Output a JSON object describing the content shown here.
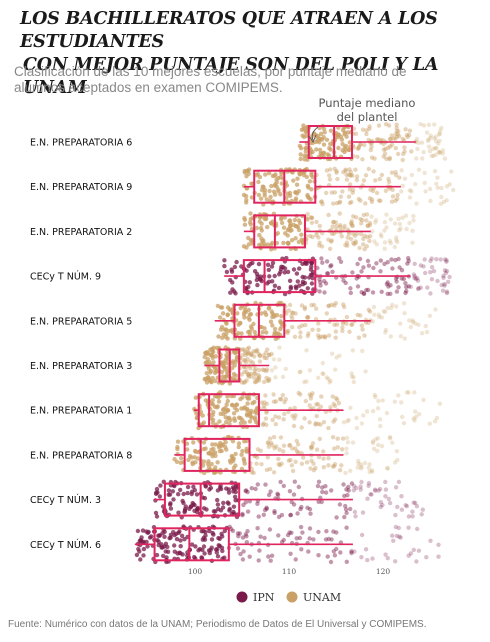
{
  "title_line1": "LOS BACHILLERATOS QUE ATRAEN A LOS ESTUDIANTES",
  "title_line2": "CON MEJOR PUNTAJE SON DEL POLI Y  LA UNAM",
  "subtitle": "Clasificación de las 10 mejores escuelas, por puntaje mediano de alumnos aceptados en examen COMIPEMS.",
  "annotation": "Puntaje mediano del plantel",
  "source": "Fuente: Numérico con datos de la UNAM; Periodismo de Datos de El Universal y COMIPEMS.",
  "colors": {
    "IPN": "#7a1a4a",
    "UNAM": "#c9a065",
    "box": "#e0245e"
  },
  "chart_data": {
    "type": "boxplot",
    "x_ticks": [
      100,
      110,
      120
    ],
    "xlim": [
      91.5,
      129
    ],
    "legend": [
      {
        "name": "IPN",
        "color": "#7a1a4a"
      },
      {
        "name": "UNAM",
        "color": "#c9a065"
      }
    ],
    "legend_position": "bottom-center",
    "schools": [
      {
        "name": "E.N. PREPARATORIA  6",
        "system": "UNAM",
        "min": 111.1,
        "q1": 112.1,
        "median": 114.8,
        "q3": 116.7,
        "whisker_high": 123.5,
        "points_max": 126.7
      },
      {
        "name": "E.N. PREPARATORIA  9",
        "system": "UNAM",
        "min": 105.2,
        "q1": 106.3,
        "median": 109.5,
        "q3": 112.8,
        "whisker_high": 121.9,
        "points_max": 127.7
      },
      {
        "name": "E.N. PREPARATORIA  2",
        "system": "UNAM",
        "min": 105.2,
        "q1": 106.3,
        "median": 108.5,
        "q3": 111.7,
        "whisker_high": 118.7,
        "points_max": 123.5
      },
      {
        "name": "CECy T NÚM. 9",
        "system": "IPN",
        "min": 103.1,
        "q1": 105.2,
        "median": 107.4,
        "q3": 112.8,
        "whisker_high": 122.9,
        "points_max": 127.2
      },
      {
        "name": "E.N. PREPARATORIA  5",
        "system": "UNAM",
        "min": 102.1,
        "q1": 104.2,
        "median": 106.8,
        "q3": 109.5,
        "whisker_high": 118.7,
        "points_max": 125.6
      },
      {
        "name": "E.N. PREPARATORIA  3",
        "system": "UNAM",
        "min": 101.0,
        "q1": 102.6,
        "median": 103.7,
        "q3": 104.7,
        "whisker_high": 107.9,
        "points_max": 118.7
      },
      {
        "name": "E.N. PREPARATORIA  1",
        "system": "UNAM",
        "min": 99.9,
        "q1": 100.4,
        "median": 101.5,
        "q3": 106.8,
        "whisker_high": 115.8,
        "points_max": 126.2
      },
      {
        "name": "E.N. PREPARATORIA  8",
        "system": "UNAM",
        "min": 97.8,
        "q1": 98.9,
        "median": 100.6,
        "q3": 105.8,
        "whisker_high": 115.8,
        "points_max": 121.9
      },
      {
        "name": "CECy T NÚM. 3",
        "system": "IPN",
        "min": 95.7,
        "q1": 96.8,
        "median": 100.6,
        "q3": 104.7,
        "whisker_high": 116.8,
        "points_max": 124.6
      },
      {
        "name": "CECy T NÚM. 6",
        "system": "IPN",
        "min": 93.6,
        "q1": 95.7,
        "median": 99.4,
        "q3": 103.6,
        "whisker_high": 116.8,
        "points_max": 126.2
      }
    ]
  }
}
